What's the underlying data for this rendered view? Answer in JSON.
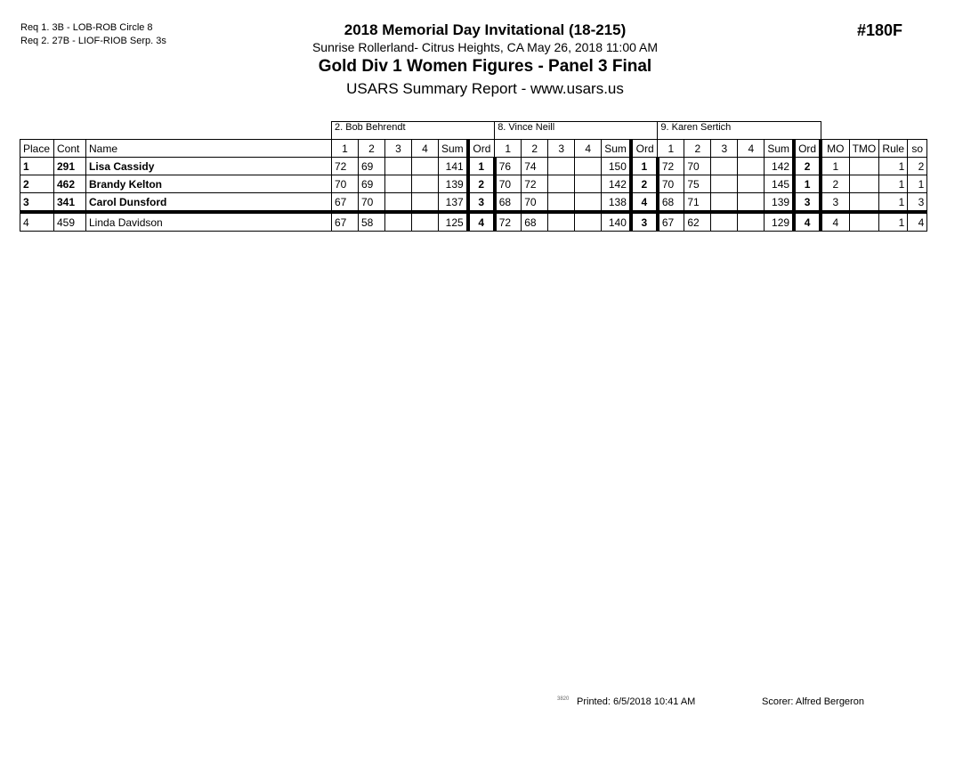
{
  "requirements": [
    "Req 1.  3B - LOB-ROB Circle 8",
    "Req 2.  27B - LIOF-RIOB Serp. 3s"
  ],
  "header": {
    "title": "2018 Memorial Day Invitational (18-215)",
    "venue": "Sunrise Rollerland- Citrus Heights, CA  May 26, 2018  11:00 AM",
    "event": "Gold Div 1 Women Figures - Panel 3 Final",
    "report": "USARS Summary Report - www.usars.us",
    "event_number": "#180F"
  },
  "table": {
    "judges": [
      "2.  Bob Behrendt",
      "8.  Vince Neill",
      "9.  Karen Sertich"
    ],
    "columns": {
      "place": "Place",
      "cont": "Cont",
      "name": "Name",
      "judge_cols": [
        "1",
        "2",
        "3",
        "4",
        "Sum",
        "Ord"
      ],
      "mo": "MO",
      "tmo": "TMO",
      "rule": "Rule",
      "so": "so"
    },
    "rows": [
      {
        "place": "1",
        "cont": "291",
        "name": "Lisa Cassidy",
        "bold": true,
        "judges": [
          [
            "72",
            "69",
            "",
            "",
            "141",
            "1"
          ],
          [
            "76",
            "74",
            "",
            "",
            "150",
            "1"
          ],
          [
            "72",
            "70",
            "",
            "",
            "142",
            "2"
          ]
        ],
        "mo": "1",
        "tmo": "",
        "rule": "1",
        "so": "2"
      },
      {
        "place": "2",
        "cont": "462",
        "name": "Brandy Kelton",
        "bold": true,
        "judges": [
          [
            "70",
            "69",
            "",
            "",
            "139",
            "2"
          ],
          [
            "70",
            "72",
            "",
            "",
            "142",
            "2"
          ],
          [
            "70",
            "75",
            "",
            "",
            "145",
            "1"
          ]
        ],
        "mo": "2",
        "tmo": "",
        "rule": "1",
        "so": "1"
      },
      {
        "place": "3",
        "cont": "341",
        "name": "Carol Dunsford",
        "bold": true,
        "judges": [
          [
            "67",
            "70",
            "",
            "",
            "137",
            "3"
          ],
          [
            "68",
            "70",
            "",
            "",
            "138",
            "4"
          ],
          [
            "68",
            "71",
            "",
            "",
            "139",
            "3"
          ]
        ],
        "mo": "3",
        "tmo": "",
        "rule": "1",
        "so": "3"
      },
      {
        "place": "4",
        "cont": "459",
        "name": "Linda Davidson",
        "bold": false,
        "judges": [
          [
            "67",
            "58",
            "",
            "",
            "125",
            "4"
          ],
          [
            "72",
            "68",
            "",
            "",
            "140",
            "3"
          ],
          [
            "67",
            "62",
            "",
            "",
            "129",
            "4"
          ]
        ],
        "mo": "4",
        "tmo": "",
        "rule": "1",
        "so": "4"
      }
    ]
  },
  "footer": {
    "code": "3820",
    "printed": "Printed:  6/5/2018  10:41 AM",
    "scorer": "Scorer:   Alfred Bergeron"
  }
}
